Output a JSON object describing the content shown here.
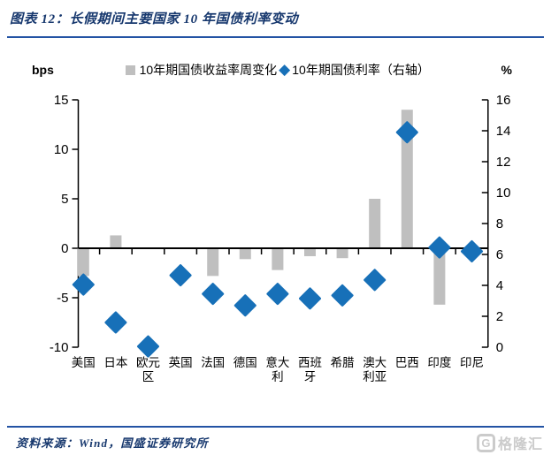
{
  "header": {
    "title": "图表 12：长假期间主要国家 10 年国债利率变动"
  },
  "chart_data": {
    "type": "bar",
    "subtype": "combo bar + diamond scatter, dual axis",
    "title": "长假期间主要国家 10 年国债利率变动",
    "categories": [
      "美国",
      "日本",
      "欧元区",
      "英国",
      "法国",
      "德国",
      "意大利",
      "西班牙",
      "希腊",
      "澳大利亚",
      "巴西",
      "印度",
      "印尼"
    ],
    "category_label_lines": [
      [
        "美国"
      ],
      [
        "日本"
      ],
      [
        "欧元",
        "区"
      ],
      [
        "英国"
      ],
      [
        "法国"
      ],
      [
        "德国"
      ],
      [
        "意大",
        "利"
      ],
      [
        "西班",
        "牙"
      ],
      [
        "希腊"
      ],
      [
        "澳大",
        "利亚"
      ],
      [
        "巴西"
      ],
      [
        "印度"
      ],
      [
        "印尼"
      ]
    ],
    "series": [
      {
        "name": "10年期国债收益率周变化",
        "type": "bar",
        "axis": "left",
        "unit": "bps",
        "color": "#BFBFBF",
        "values": [
          -2.8,
          1.3,
          0,
          0,
          -2.8,
          -1.1,
          -2.2,
          -0.8,
          -1.0,
          5.0,
          14.0,
          -5.7,
          -0.9
        ]
      },
      {
        "name": "10年期国债利率（右轴）",
        "type": "scatter-diamond",
        "axis": "right",
        "unit": "%",
        "color": "#1770B8",
        "values": [
          4.05,
          1.6,
          0.05,
          4.65,
          3.45,
          2.7,
          3.45,
          3.15,
          3.35,
          4.35,
          13.9,
          6.45,
          6.2
        ]
      }
    ],
    "left_axis": {
      "unit": "bps",
      "min": -10,
      "max": 15,
      "step": 5,
      "ticks": [
        15,
        10,
        5,
        0,
        -5,
        -10
      ]
    },
    "right_axis": {
      "unit": "%",
      "min": 0,
      "max": 16,
      "step": 2,
      "ticks": [
        16,
        14,
        12,
        10,
        8,
        6,
        4,
        2,
        0
      ]
    },
    "grid": false,
    "legend_position": "top",
    "axis_color": "#000000"
  },
  "footer": {
    "source": "资料来源：Wind，国盛证券研究所",
    "watermark_initial": "G",
    "watermark": "格隆汇"
  },
  "colors": {
    "bar": "#BFBFBF",
    "diamond": "#1770B8",
    "title_text": "#17386E",
    "divider": "#2353A4",
    "watermark": "#CBCBCB"
  }
}
